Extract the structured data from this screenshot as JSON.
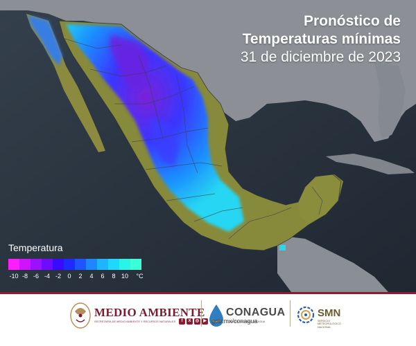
{
  "header": {
    "title_line1": "Pronóstico de",
    "title_line2": "Temperaturas mínimas",
    "date": "31 de diciembre de 2023"
  },
  "legend": {
    "title": "Temperatura",
    "unit": "°C",
    "ticks": [
      "-10",
      "-8",
      "-6",
      "-4",
      "-2",
      "0",
      "2",
      "4",
      "6",
      "8",
      "10"
    ],
    "colors": [
      "#ff1eff",
      "#cc14ff",
      "#9b10ff",
      "#6e0cff",
      "#3a0aff",
      "#1f2aff",
      "#1e55ff",
      "#1e86ff",
      "#1eb4ff",
      "#1ed8ff",
      "#2af4e6",
      "#3affd6"
    ]
  },
  "map": {
    "ocean_color": "#2b3440",
    "land_foreign_color": "#8f9399",
    "warm_land_color": "#8a8a3a",
    "cold_colors": [
      "#4b23d6",
      "#2f4bff",
      "#1c9bff",
      "#28e2f0"
    ]
  },
  "footer": {
    "medio_ambiente": {
      "name": "MEDIO AMBIENTE",
      "subtitle": "SECRETARÍA DE MEDIO AMBIENTE Y RECURSOS NATURALES"
    },
    "conagua": {
      "name": "CONAGUA",
      "subtitle": "COMISIÓN NACIONAL DEL AGUA"
    },
    "smn": {
      "name": "SMN",
      "subtitle": "SERVICIO METEOROLÓGICO NACIONAL"
    },
    "social_url": "gob.mx/conagua",
    "social_icons": [
      "facebook-icon",
      "x-icon",
      "instagram-icon",
      "youtube-icon"
    ]
  }
}
